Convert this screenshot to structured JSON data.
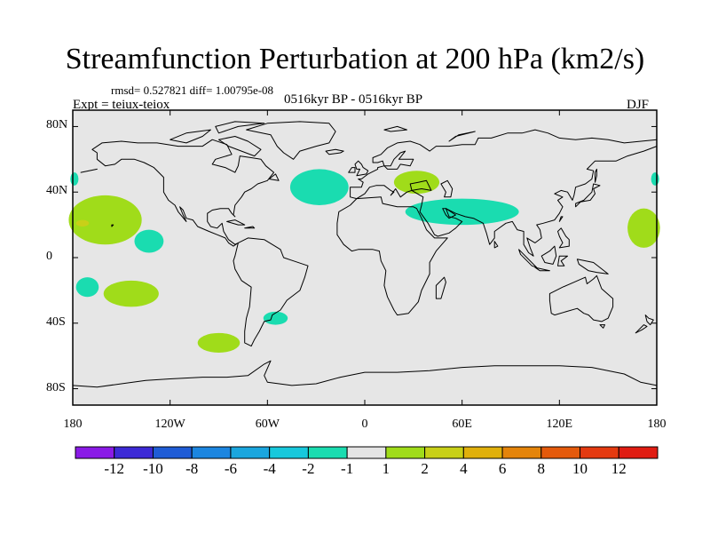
{
  "title": "Streamfunction Perturbation at 200 hPa (km2/s)",
  "stats": "rmsd= 0.527821 diff= 1.00795e-08",
  "experiment": "Expt = teiux-teiox",
  "period": "0516kyr BP - 0516kyr BP",
  "season": "DJF",
  "chart_data": {
    "type": "heatmap",
    "projection": "cylindrical-equidistant",
    "variable": "Streamfunction Perturbation at 200 hPa",
    "units": "km2/s",
    "lon_range": [
      -180,
      180
    ],
    "lat_range": [
      -90,
      90
    ],
    "x_tick_labels": [
      "180",
      "120W",
      "60W",
      "0",
      "60E",
      "120E",
      "180"
    ],
    "x_tick_values": [
      -180,
      -120,
      -60,
      0,
      60,
      120,
      180
    ],
    "y_tick_labels": [
      "80N",
      "40N",
      "0",
      "40S",
      "80S"
    ],
    "y_tick_values": [
      80,
      40,
      0,
      -40,
      -80
    ],
    "background_category": "-1 to 1",
    "anomalies": [
      {
        "name": "north-atlantic-low",
        "lon": -28,
        "lat": 43,
        "lon_span": 36,
        "lat_span": 22,
        "range": "-2 to -1"
      },
      {
        "name": "black-sea-high",
        "lon": 32,
        "lat": 46,
        "lon_span": 28,
        "lat_span": 14,
        "range": "1 to 2"
      },
      {
        "name": "middle-east-low",
        "lon": 60,
        "lat": 28,
        "lon_span": 70,
        "lat_span": 16,
        "range": "-2 to -1"
      },
      {
        "name": "east-pacific-high",
        "lon": -160,
        "lat": 23,
        "lon_span": 45,
        "lat_span": 30,
        "range": "1 to 2"
      },
      {
        "name": "east-pacific-high-core",
        "lon": -174,
        "lat": 21,
        "lon_span": 8,
        "lat_span": 4,
        "range": "2 to 4"
      },
      {
        "name": "west-pacific-high",
        "lon": 172,
        "lat": 18,
        "lon_span": 20,
        "lat_span": 24,
        "range": "1 to 2"
      },
      {
        "name": "north-pacific-edge-low-west",
        "lon": -179,
        "lat": 48,
        "lon_span": 5,
        "lat_span": 8,
        "range": "-2 to -1"
      },
      {
        "name": "north-pacific-edge-low-east",
        "lon": 179,
        "lat": 48,
        "lon_span": 5,
        "lat_span": 8,
        "range": "-2 to -1"
      },
      {
        "name": "central-pacific-low",
        "lon": -133,
        "lat": 10,
        "lon_span": 18,
        "lat_span": 14,
        "range": "-2 to -1"
      },
      {
        "name": "south-pacific-low",
        "lon": -171,
        "lat": -18,
        "lon_span": 14,
        "lat_span": 12,
        "range": "-2 to -1"
      },
      {
        "name": "south-pacific-high",
        "lon": -144,
        "lat": -22,
        "lon_span": 34,
        "lat_span": 16,
        "range": "1 to 2"
      },
      {
        "name": "southeast-pacific-high",
        "lon": -90,
        "lat": -52,
        "lon_span": 26,
        "lat_span": 12,
        "range": "1 to 2"
      },
      {
        "name": "south-atlantic-low",
        "lon": -55,
        "lat": -37,
        "lon_span": 15,
        "lat_span": 8,
        "range": "-2 to -1"
      }
    ],
    "colorbar": {
      "labels": [
        "-12",
        "-10",
        "-8",
        "-6",
        "-4",
        "-2",
        "-1",
        "1",
        "2",
        "4",
        "6",
        "8",
        "10",
        "12"
      ],
      "colors": [
        "#8a1ae6",
        "#3c2ad6",
        "#1f5cd6",
        "#1c86e0",
        "#1aa6de",
        "#17c8dc",
        "#1adcb0",
        "#e4e4e4",
        "#a0dc1a",
        "#c8d018",
        "#e0b00c",
        "#e4840a",
        "#e45a0c",
        "#e43a10",
        "#e01c12"
      ]
    }
  },
  "colors": {
    "ocean_land_background": "#e6e6e6",
    "coastline": "#000000",
    "neg_small": "#1adcb0",
    "pos_small": "#a0dc1a",
    "pos_medium": "#c8d018"
  }
}
